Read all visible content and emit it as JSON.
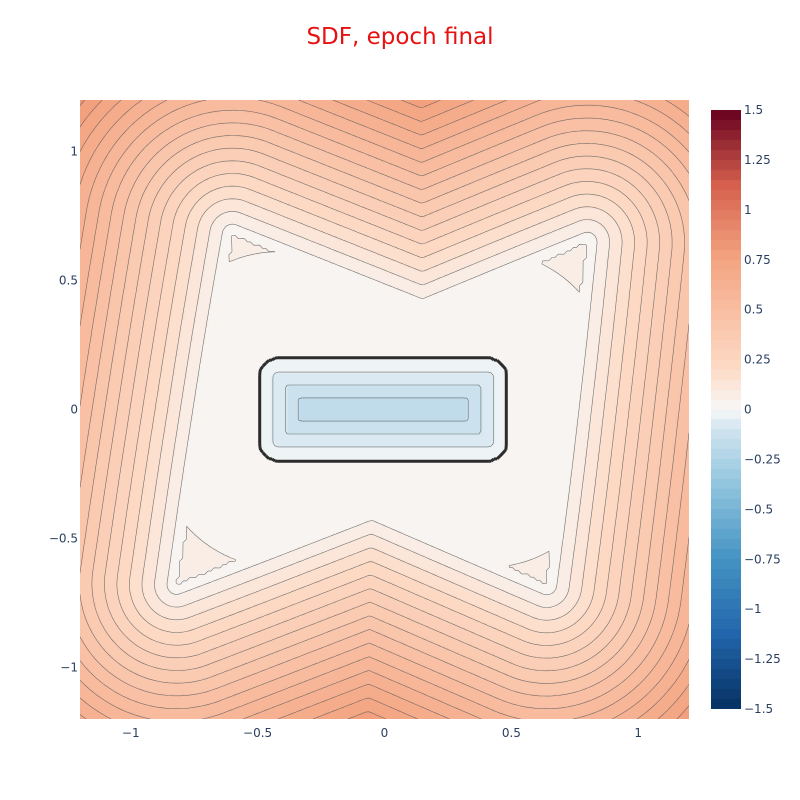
{
  "chart_data": {
    "type": "contour",
    "title": "SDF, epoch final",
    "xlabel": "",
    "ylabel": "",
    "xlim": [
      -1.2,
      1.2
    ],
    "ylim": [
      -1.2,
      1.2
    ],
    "x_ticks": [
      {
        "value": -1,
        "label": "−1"
      },
      {
        "value": -0.5,
        "label": "−0.5"
      },
      {
        "value": 0,
        "label": "0"
      },
      {
        "value": 0.5,
        "label": "0.5"
      },
      {
        "value": 1,
        "label": "1"
      }
    ],
    "y_ticks": [
      {
        "value": 1,
        "label": "1"
      },
      {
        "value": 0.5,
        "label": "0.5"
      },
      {
        "value": 0,
        "label": "0"
      },
      {
        "value": -0.5,
        "label": "−0.5"
      },
      {
        "value": -1,
        "label": "−1"
      }
    ],
    "colorbar": {
      "range": [
        -1.5,
        1.5
      ],
      "ticks": [
        {
          "value": 1.5,
          "label": "1.5"
        },
        {
          "value": 1.25,
          "label": "1.25"
        },
        {
          "value": 1,
          "label": "1"
        },
        {
          "value": 0.75,
          "label": "0.75"
        },
        {
          "value": 0.5,
          "label": "0.5"
        },
        {
          "value": 0.25,
          "label": "0.25"
        },
        {
          "value": 0,
          "label": "0"
        },
        {
          "value": -0.25,
          "label": "−0.25"
        },
        {
          "value": -0.5,
          "label": "−0.5"
        },
        {
          "value": -0.75,
          "label": "−0.75"
        },
        {
          "value": -1,
          "label": "−1"
        },
        {
          "value": -1.25,
          "label": "−1.25"
        },
        {
          "value": -1.5,
          "label": "−1.5"
        }
      ],
      "colorscale": "RdBu (reversed)",
      "contour_step": 0.05
    },
    "zero_level_contour": {
      "shape": "rounded rectangle",
      "x_range": [
        -0.5,
        0.5
      ],
      "y_range": [
        -0.2,
        0.2
      ]
    },
    "colors": {
      "title": "#e81010",
      "tick_text": "#2a3f5f",
      "contour_line": "#5a5a5a",
      "zero_contour": "#2c2c2c",
      "max_color": "#67001f",
      "min_color": "#053061",
      "zero_color": "#f7f7f7"
    },
    "grid": false,
    "legend": "colorbar right"
  }
}
